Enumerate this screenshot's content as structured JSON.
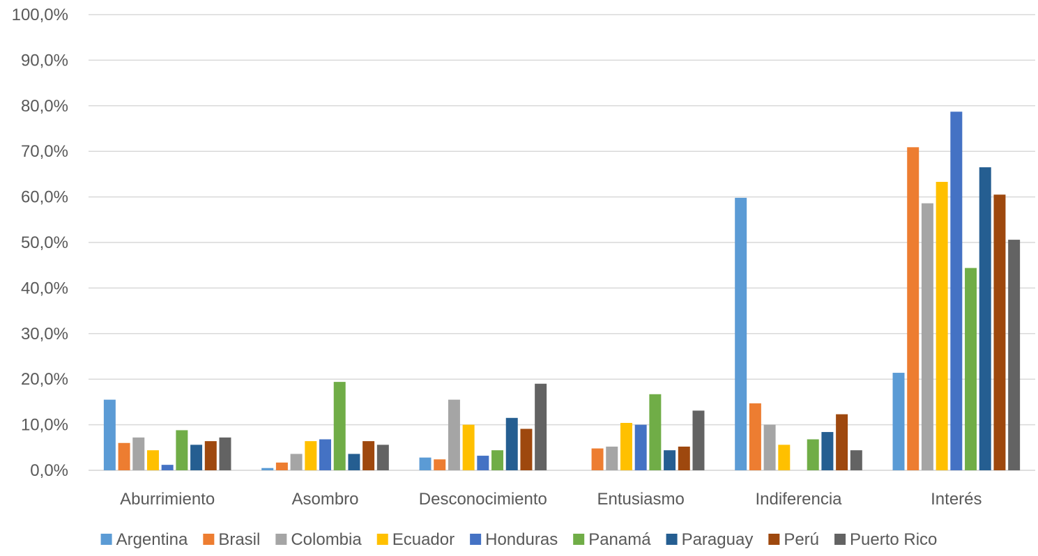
{
  "chart_data": {
    "type": "bar",
    "title": "",
    "xlabel": "",
    "ylabel": "",
    "ylim": [
      0,
      100
    ],
    "yticks": [
      "0,0%",
      "10,0%",
      "20,0%",
      "30,0%",
      "40,0%",
      "50,0%",
      "60,0%",
      "70,0%",
      "80,0%",
      "90,0%",
      "100,0%"
    ],
    "grid": true,
    "legend_position": "bottom",
    "categories": [
      "Aburrimiento",
      "Asombro",
      "Desconocimiento",
      "Entusiasmo",
      "Indiferencia",
      "Interés"
    ],
    "series": [
      {
        "name": "Argentina",
        "color": "#5B9BD5",
        "values": [
          15.5,
          0.5,
          2.8,
          0.0,
          59.8,
          21.4
        ]
      },
      {
        "name": "Brasil",
        "color": "#ED7D31",
        "values": [
          6.0,
          1.7,
          2.4,
          4.8,
          14.7,
          70.9
        ]
      },
      {
        "name": "Colombia",
        "color": "#A5A5A5",
        "values": [
          7.2,
          3.6,
          15.5,
          5.2,
          10.0,
          58.6
        ]
      },
      {
        "name": "Ecuador",
        "color": "#FFC000",
        "values": [
          4.4,
          6.4,
          10.0,
          10.4,
          5.6,
          63.3
        ]
      },
      {
        "name": "Honduras",
        "color": "#4472C4",
        "values": [
          1.2,
          6.8,
          3.2,
          10.0,
          0.0,
          78.7
        ]
      },
      {
        "name": "Panamá",
        "color": "#70AD47",
        "values": [
          8.8,
          19.4,
          4.4,
          16.7,
          6.8,
          44.4
        ]
      },
      {
        "name": "Paraguay",
        "color": "#255E91",
        "values": [
          5.6,
          3.6,
          11.5,
          4.4,
          8.4,
          66.5
        ]
      },
      {
        "name": "Perú",
        "color": "#9E480E",
        "values": [
          6.4,
          6.4,
          9.1,
          5.2,
          12.3,
          60.5
        ]
      },
      {
        "name": "Puerto Rico",
        "color": "#636363",
        "values": [
          7.2,
          5.6,
          19.0,
          13.1,
          4.4,
          50.6
        ]
      }
    ]
  }
}
